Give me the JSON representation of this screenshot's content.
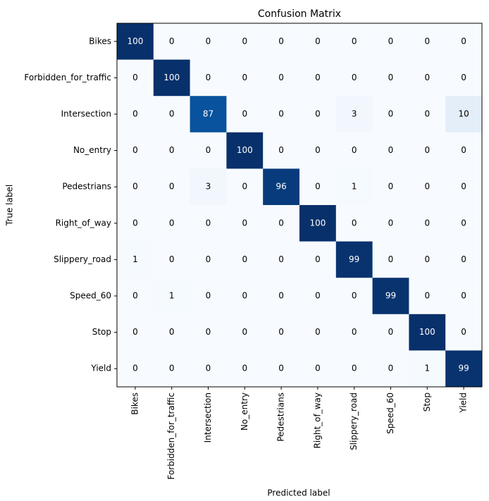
{
  "chart_data": {
    "type": "heatmap",
    "title": "Confusion Matrix",
    "x_label": "Predicted label",
    "y_label": "True label",
    "colormap": "Blues",
    "x_categories": [
      "Bikes",
      "Forbidden_for_traffic",
      "Intersection",
      "No_entry",
      "Pedestrians",
      "Right_of_way",
      "Slippery_road",
      "Speed_60",
      "Stop",
      "Yield"
    ],
    "y_categories": [
      "Bikes",
      "Forbidden_for_traffic",
      "Intersection",
      "No_entry",
      "Pedestrians",
      "Right_of_way",
      "Slippery_road",
      "Speed_60",
      "Stop",
      "Yield"
    ],
    "values": [
      [
        100,
        0,
        0,
        0,
        0,
        0,
        0,
        0,
        0,
        0
      ],
      [
        0,
        100,
        0,
        0,
        0,
        0,
        0,
        0,
        0,
        0
      ],
      [
        0,
        0,
        87,
        0,
        0,
        0,
        3,
        0,
        0,
        10
      ],
      [
        0,
        0,
        0,
        100,
        0,
        0,
        0,
        0,
        0,
        0
      ],
      [
        0,
        0,
        3,
        0,
        96,
        0,
        1,
        0,
        0,
        0
      ],
      [
        0,
        0,
        0,
        0,
        0,
        100,
        0,
        0,
        0,
        0
      ],
      [
        1,
        0,
        0,
        0,
        0,
        0,
        99,
        0,
        0,
        0
      ],
      [
        0,
        1,
        0,
        0,
        0,
        0,
        0,
        99,
        0,
        0
      ],
      [
        0,
        0,
        0,
        0,
        0,
        0,
        0,
        0,
        100,
        0
      ],
      [
        0,
        0,
        0,
        0,
        0,
        0,
        0,
        0,
        1,
        99
      ]
    ]
  }
}
